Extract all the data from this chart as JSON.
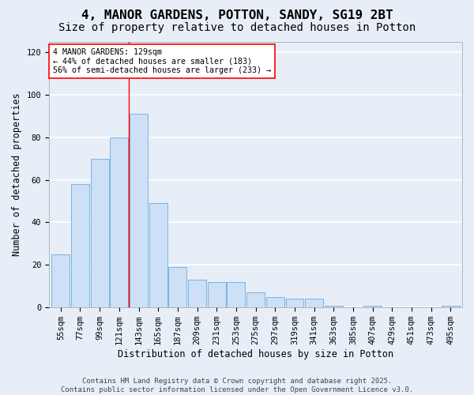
{
  "title": "4, MANOR GARDENS, POTTON, SANDY, SG19 2BT",
  "subtitle": "Size of property relative to detached houses in Potton",
  "xlabel": "Distribution of detached houses by size in Potton",
  "ylabel": "Number of detached properties",
  "categories": [
    "55sqm",
    "77sqm",
    "99sqm",
    "121sqm",
    "143sqm",
    "165sqm",
    "187sqm",
    "209sqm",
    "231sqm",
    "253sqm",
    "275sqm",
    "297sqm",
    "319sqm",
    "341sqm",
    "363sqm",
    "385sqm",
    "407sqm",
    "429sqm",
    "451sqm",
    "473sqm",
    "495sqm"
  ],
  "values": [
    25,
    58,
    70,
    80,
    91,
    49,
    19,
    13,
    12,
    12,
    7,
    5,
    4,
    4,
    1,
    0,
    1,
    0,
    0,
    0,
    1
  ],
  "bar_color": "#cde0f5",
  "bar_edge_color": "#7ab4e0",
  "ylim": [
    0,
    125
  ],
  "yticks": [
    0,
    20,
    40,
    60,
    80,
    100,
    120
  ],
  "property_line_x": 3.5,
  "annotation_title": "4 MANOR GARDENS: 129sqm",
  "annotation_line1": "← 44% of detached houses are smaller (183)",
  "annotation_line2": "56% of semi-detached houses are larger (233) →",
  "footer_line1": "Contains HM Land Registry data © Crown copyright and database right 2025.",
  "footer_line2": "Contains public sector information licensed under the Open Government Licence v3.0.",
  "background_color": "#e8eef8",
  "grid_color": "#ffffff",
  "title_fontsize": 11.5,
  "subtitle_fontsize": 10,
  "axis_label_fontsize": 8.5,
  "tick_fontsize": 7.5,
  "footer_fontsize": 6.5
}
